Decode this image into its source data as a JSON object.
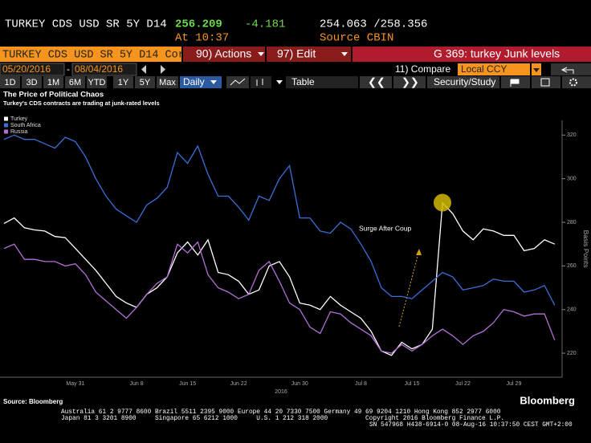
{
  "header": {
    "ticker": "TURKEY CDS USD SR 5Y D14",
    "last": "256.209",
    "change": "-4.181",
    "bid_ask": "254.063 /258.356",
    "time": "At 10:37",
    "source": "Source CBIN"
  },
  "toolbar": {
    "security": "TURKEY CDS USD SR 5Y D14 Cor",
    "actions": "90) Actions",
    "edit": "97) Edit",
    "page": "G 369: turkey Junk levels",
    "start_date": "05/20/2016",
    "end_date": "08/04/2016",
    "compare": "11) Compare",
    "currency": "Local CCY",
    "ranges": [
      "1D",
      "3D",
      "1M",
      "6M",
      "YTD",
      "1Y",
      "5Y",
      "Max"
    ],
    "frequency": "Daily",
    "table": "Table",
    "study": "Security/Study"
  },
  "chart_data": {
    "type": "line",
    "title": "The Price of Political Chaos",
    "subtitle": "Turkey's CDS contracts are trading at junk-rated levels",
    "y_label": "Basis Points",
    "x_label": "2016",
    "annotation": "Surge After Coup",
    "source": "Source: Bloomberg",
    "categories": [
      null,
      null,
      null,
      null,
      null,
      null,
      null,
      "May 31",
      null,
      null,
      null,
      null,
      null,
      "Jun 8",
      null,
      null,
      null,
      null,
      "Jun 15",
      null,
      null,
      null,
      null,
      "Jun 22",
      null,
      null,
      null,
      null,
      null,
      "Jun 30",
      null,
      null,
      null,
      null,
      null,
      "Jul 8",
      null,
      null,
      null,
      null,
      "Jul 15",
      null,
      null,
      null,
      null,
      "Jul 22",
      null,
      null,
      null,
      null,
      "Jul 29",
      null,
      null,
      null,
      null
    ],
    "series": [
      {
        "name": "Turkey",
        "color": "#ffffff",
        "values": [
          279.5,
          282,
          277.5,
          276.5,
          276,
          273.5,
          273,
          268,
          263,
          258,
          252,
          246,
          243,
          241,
          247,
          250,
          255,
          266,
          271,
          265,
          272,
          257,
          256,
          253,
          247,
          249,
          260,
          262,
          255,
          243,
          242,
          240,
          246,
          242,
          239,
          236,
          230,
          221,
          219,
          225,
          222,
          224,
          231,
          289,
          284,
          276,
          272,
          277,
          276,
          274,
          274,
          267,
          268,
          272,
          270
        ]
      },
      {
        "name": "South Africa",
        "color": "#3a6fd8",
        "values": [
          318,
          320,
          318,
          318,
          316,
          314,
          319,
          317,
          310,
          300,
          292,
          286,
          283,
          280,
          288,
          291,
          296,
          312,
          307,
          315,
          302,
          292,
          292,
          287,
          281,
          292,
          290,
          300,
          306,
          282,
          282,
          276,
          275,
          280,
          277,
          270,
          262,
          250,
          246,
          246,
          245,
          249,
          253,
          257,
          255,
          249,
          250,
          251,
          254,
          253,
          253,
          248,
          249,
          251,
          242
        ]
      },
      {
        "name": "Russia",
        "color": "#b46fd6",
        "values": [
          268,
          270,
          263,
          263,
          262,
          262,
          260,
          261,
          256,
          248,
          244,
          240,
          236,
          241,
          247,
          252,
          255,
          270,
          266,
          271,
          256,
          250,
          248,
          245,
          247,
          258,
          262,
          253,
          243,
          240,
          232,
          229,
          239,
          238,
          234,
          231,
          228,
          221,
          220,
          224,
          221,
          224,
          228,
          231,
          228,
          224,
          228,
          230,
          234,
          240,
          239,
          237,
          238,
          238,
          226
        ]
      }
    ],
    "ylim": [
      209,
      326
    ],
    "yticks": [
      220,
      240,
      260,
      280,
      300,
      320
    ],
    "legend": "top-left"
  },
  "footer": {
    "brand": "Bloomberg",
    "line1": "Australia 61 2 9777 8600 Brazil 5511 2395 9000 Europe 44 20 7330 7500 Germany 49 69 9204 1210 Hong Kong 852 2977 6000",
    "line2": "Japan 81 3 3201 8900     Singapore 65 6212 1000     U.S. 1 212 318 2000          Copyright 2016 Bloomberg Finance L.P.",
    "line3": "SN 547968 H438-6914-0 08-Aug-16 10:37:50 CEST GMT+2:00"
  }
}
